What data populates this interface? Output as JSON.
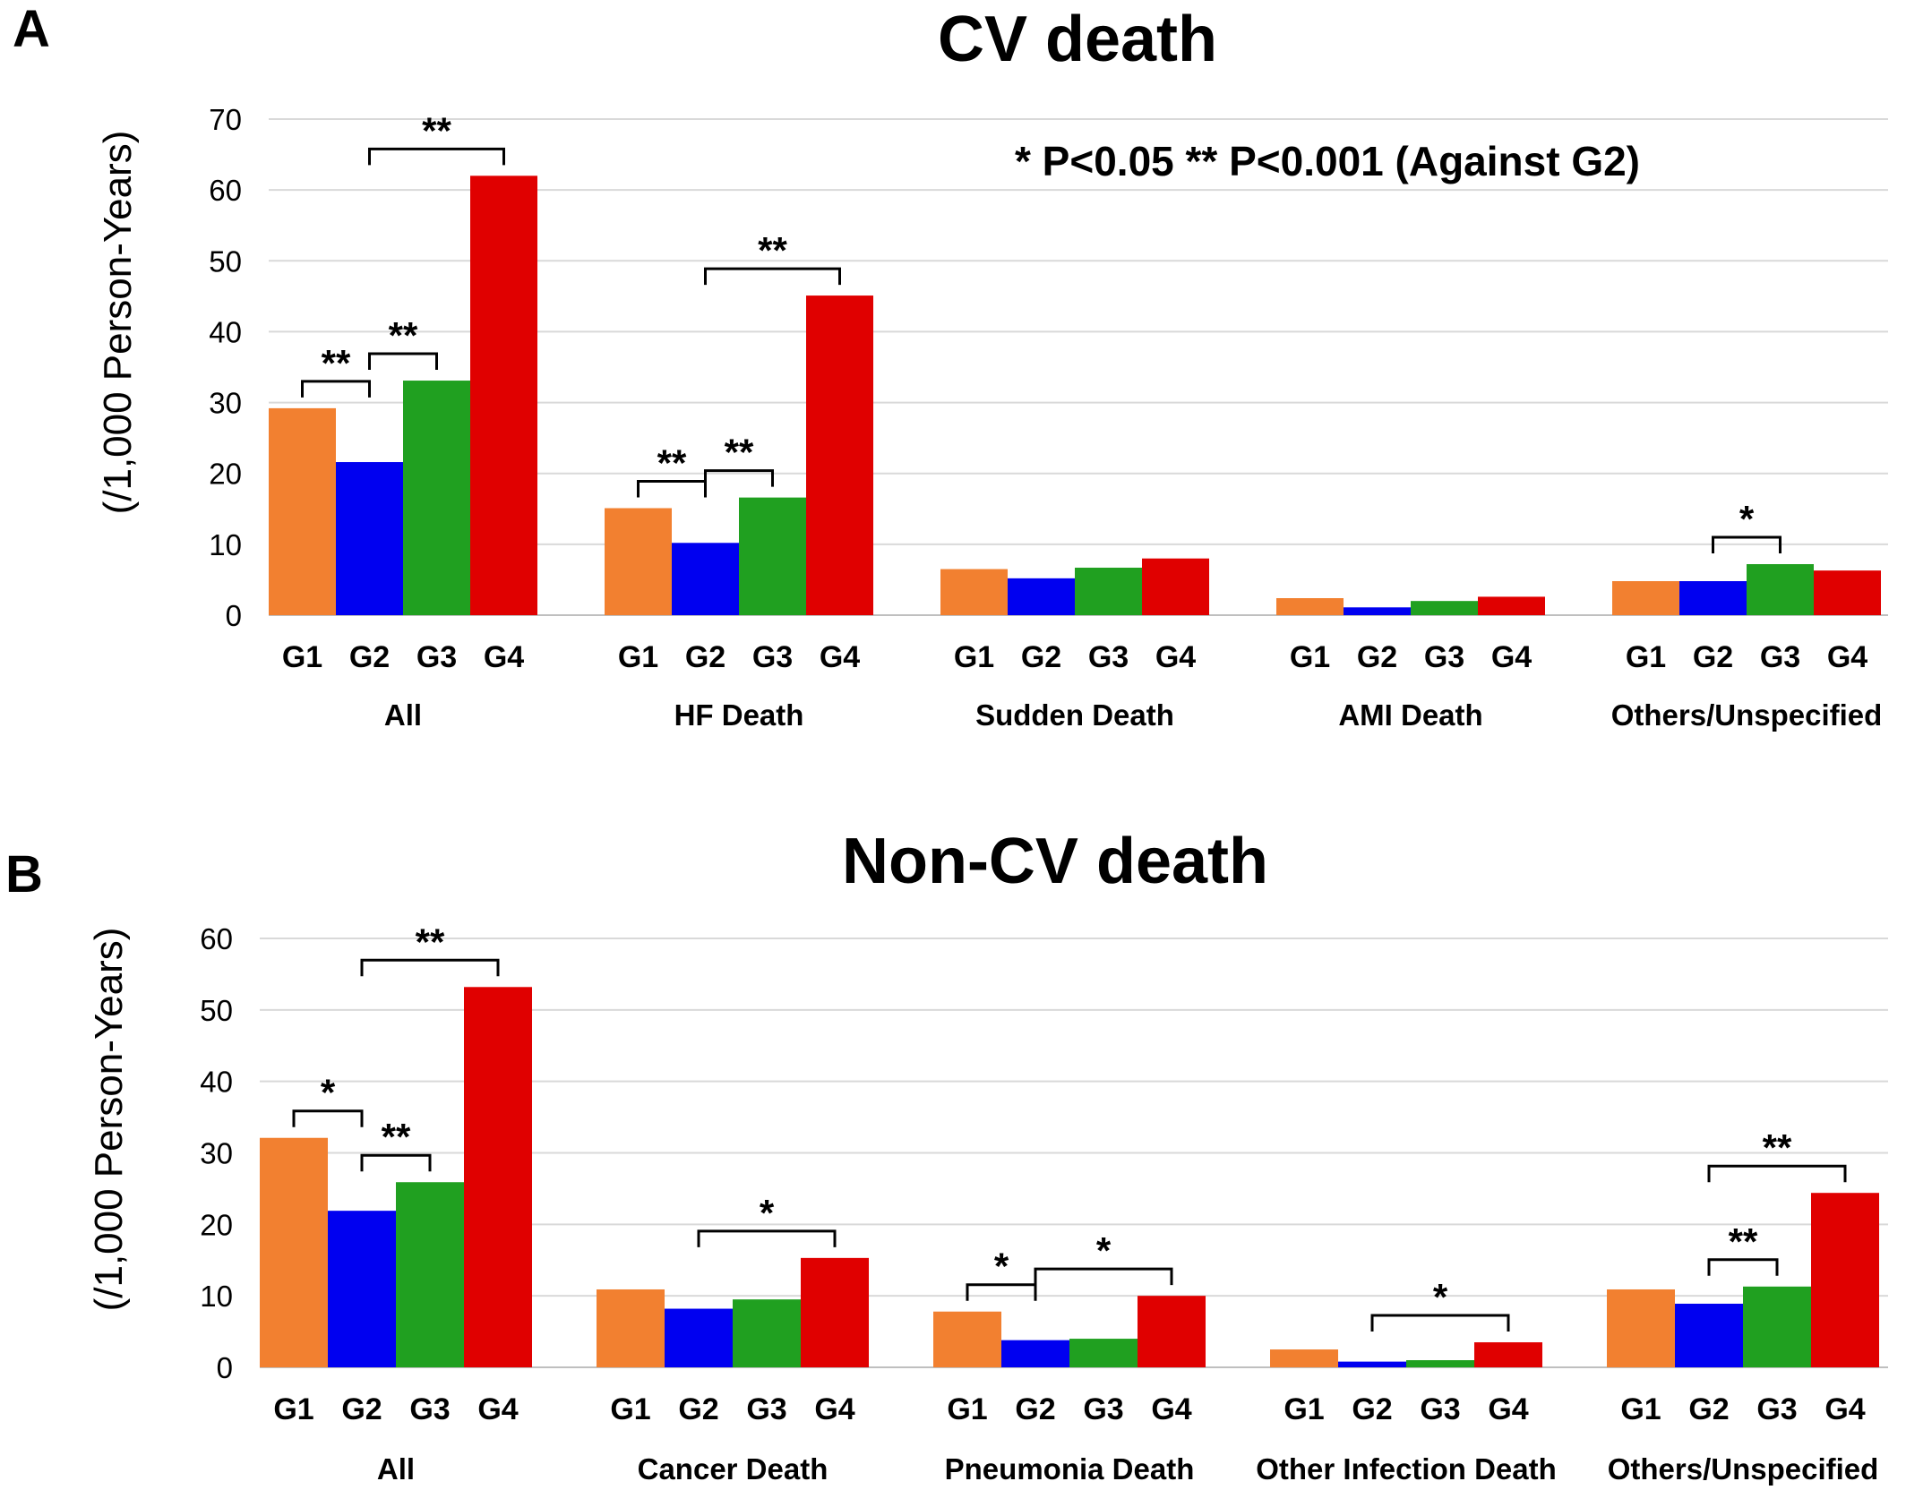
{
  "chart_data": [
    {
      "type": "bar",
      "panel": "A",
      "title": "CV death",
      "ylabel": "(/1,000 Person-Years)",
      "xlabel": "",
      "ylim": [
        0,
        70
      ],
      "yticks": [
        0,
        10,
        20,
        30,
        40,
        50,
        60,
        70
      ],
      "grid": true,
      "note": "* P<0.05   ** P<0.001 (Against G2)",
      "series_colors": [
        "#F28030",
        "#0000F0",
        "#20A020",
        "#E00000"
      ],
      "groups": [
        {
          "label": "All",
          "categories": [
            "G1",
            "G2",
            "G3",
            "G4"
          ],
          "values": [
            29.2,
            21.6,
            33.1,
            62.0
          ],
          "significance": [
            {
              "from": 0,
              "to": 1,
              "label": "**"
            },
            {
              "from": 1,
              "to": 2,
              "label": "**"
            },
            {
              "from": 1,
              "to": 3,
              "label": "**"
            }
          ]
        },
        {
          "label": "HF Death",
          "categories": [
            "G1",
            "G2",
            "G3",
            "G4"
          ],
          "values": [
            15.1,
            10.2,
            16.6,
            45.1
          ],
          "significance": [
            {
              "from": 0,
              "to": 1,
              "label": "**"
            },
            {
              "from": 1,
              "to": 2,
              "label": "**"
            },
            {
              "from": 1,
              "to": 3,
              "label": "**"
            }
          ]
        },
        {
          "label": "Sudden Death",
          "categories": [
            "G1",
            "G2",
            "G3",
            "G4"
          ],
          "values": [
            6.5,
            5.2,
            6.7,
            8.0
          ],
          "significance": []
        },
        {
          "label": "AMI Death",
          "categories": [
            "G1",
            "G2",
            "G3",
            "G4"
          ],
          "values": [
            2.4,
            1.1,
            2.0,
            2.6
          ],
          "significance": []
        },
        {
          "label": "Others/Unspecified",
          "categories": [
            "G1",
            "G2",
            "G3",
            "G4"
          ],
          "values": [
            4.8,
            4.8,
            7.2,
            6.3
          ],
          "significance": [
            {
              "from": 1,
              "to": 2,
              "label": "*"
            }
          ]
        }
      ]
    },
    {
      "type": "bar",
      "panel": "B",
      "title": "Non-CV death",
      "ylabel": "(/1,000 Person-Years)",
      "xlabel": "",
      "ylim": [
        0,
        60
      ],
      "yticks": [
        0,
        10,
        20,
        30,
        40,
        50,
        60
      ],
      "grid": true,
      "series_colors": [
        "#F28030",
        "#0000F0",
        "#20A020",
        "#E00000"
      ],
      "groups": [
        {
          "label": "All",
          "categories": [
            "G1",
            "G2",
            "G3",
            "G4"
          ],
          "values": [
            32.1,
            21.9,
            25.9,
            53.2
          ],
          "significance": [
            {
              "from": 0,
              "to": 1,
              "label": "*"
            },
            {
              "from": 1,
              "to": 2,
              "label": "**"
            },
            {
              "from": 1,
              "to": 3,
              "label": "**"
            }
          ]
        },
        {
          "label": "Cancer Death",
          "categories": [
            "G1",
            "G2",
            "G3",
            "G4"
          ],
          "values": [
            10.9,
            8.2,
            9.5,
            15.3
          ],
          "significance": [
            {
              "from": 1,
              "to": 3,
              "label": "*"
            }
          ]
        },
        {
          "label": "Pneumonia Death",
          "categories": [
            "G1",
            "G2",
            "G3",
            "G4"
          ],
          "values": [
            7.8,
            3.8,
            4.0,
            10.0
          ],
          "significance": [
            {
              "from": 0,
              "to": 1,
              "label": "*"
            },
            {
              "from": 1,
              "to": 3,
              "label": "*"
            }
          ]
        },
        {
          "label": "Other Infection Death",
          "categories": [
            "G1",
            "G2",
            "G3",
            "G4"
          ],
          "values": [
            2.5,
            0.8,
            1.0,
            3.5
          ],
          "significance": [
            {
              "from": 1,
              "to": 3,
              "label": "*"
            }
          ]
        },
        {
          "label": "Others/Unspecified",
          "categories": [
            "G1",
            "G2",
            "G3",
            "G4"
          ],
          "values": [
            10.9,
            8.9,
            11.3,
            24.4
          ],
          "significance": [
            {
              "from": 1,
              "to": 2,
              "label": "**"
            },
            {
              "from": 1,
              "to": 3,
              "label": "**"
            }
          ]
        }
      ]
    }
  ]
}
